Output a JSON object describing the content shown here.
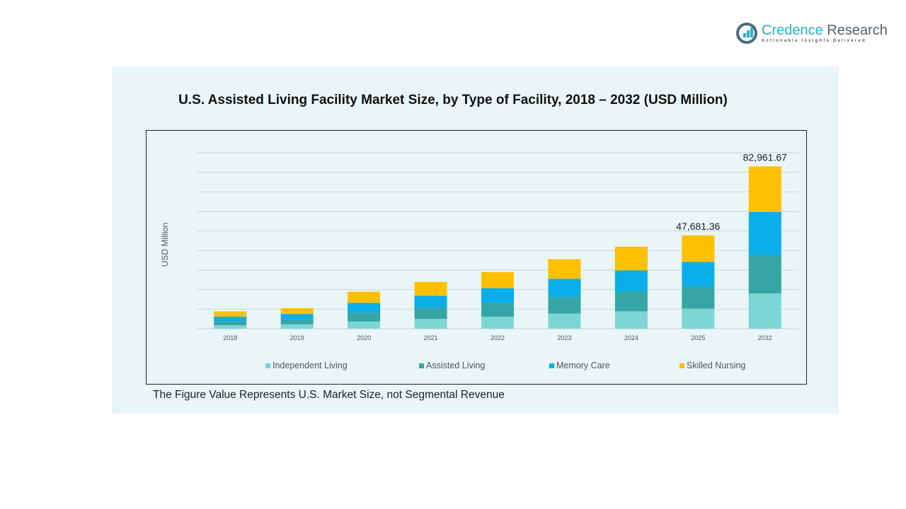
{
  "logo": {
    "name_part1": "Credence",
    "name_part2": "Research",
    "tagline": "Actionable Insights Delivered"
  },
  "chart_data": {
    "type": "bar",
    "stacked": true,
    "title": "U.S. Assisted Living Facility Market Size, by Type of Facility, 2018 – 2032 (USD Million)",
    "xlabel": "",
    "ylabel": "USD Million",
    "ylim": [
      0,
      90000
    ],
    "grid": true,
    "legend_position": "bottom",
    "categories": [
      "2018",
      "2019",
      "2020",
      "2021",
      "2022",
      "2023",
      "2024",
      "2025",
      "2032"
    ],
    "series": [
      {
        "name": "Independent Living",
        "color": "#7dd6d6",
        "values": [
          1824,
          2280,
          3648,
          5016,
          6156,
          7752,
          8892,
          10260,
          18005
        ]
      },
      {
        "name": "Assisted Living",
        "color": "#36a5a5",
        "values": [
          2052,
          2508,
          4560,
          5700,
          7068,
          8436,
          10032,
          11400,
          19770
        ]
      },
      {
        "name": "Memory Care",
        "color": "#0aaee8",
        "values": [
          2280,
          2736,
          5016,
          6156,
          7524,
          9348,
          10944,
          12540,
          21888
        ]
      },
      {
        "name": "Skilled Nursing",
        "color": "#fec000",
        "values": [
          2736,
          2964,
          5700,
          7068,
          8208,
          10032,
          12084,
          13481,
          23299
        ]
      }
    ],
    "data_labels": {
      "2025": "47,681.36",
      "2032": "82,961.67"
    }
  },
  "footnote": "The Figure Value Represents U.S. Market Size, not Segmental Revenue"
}
